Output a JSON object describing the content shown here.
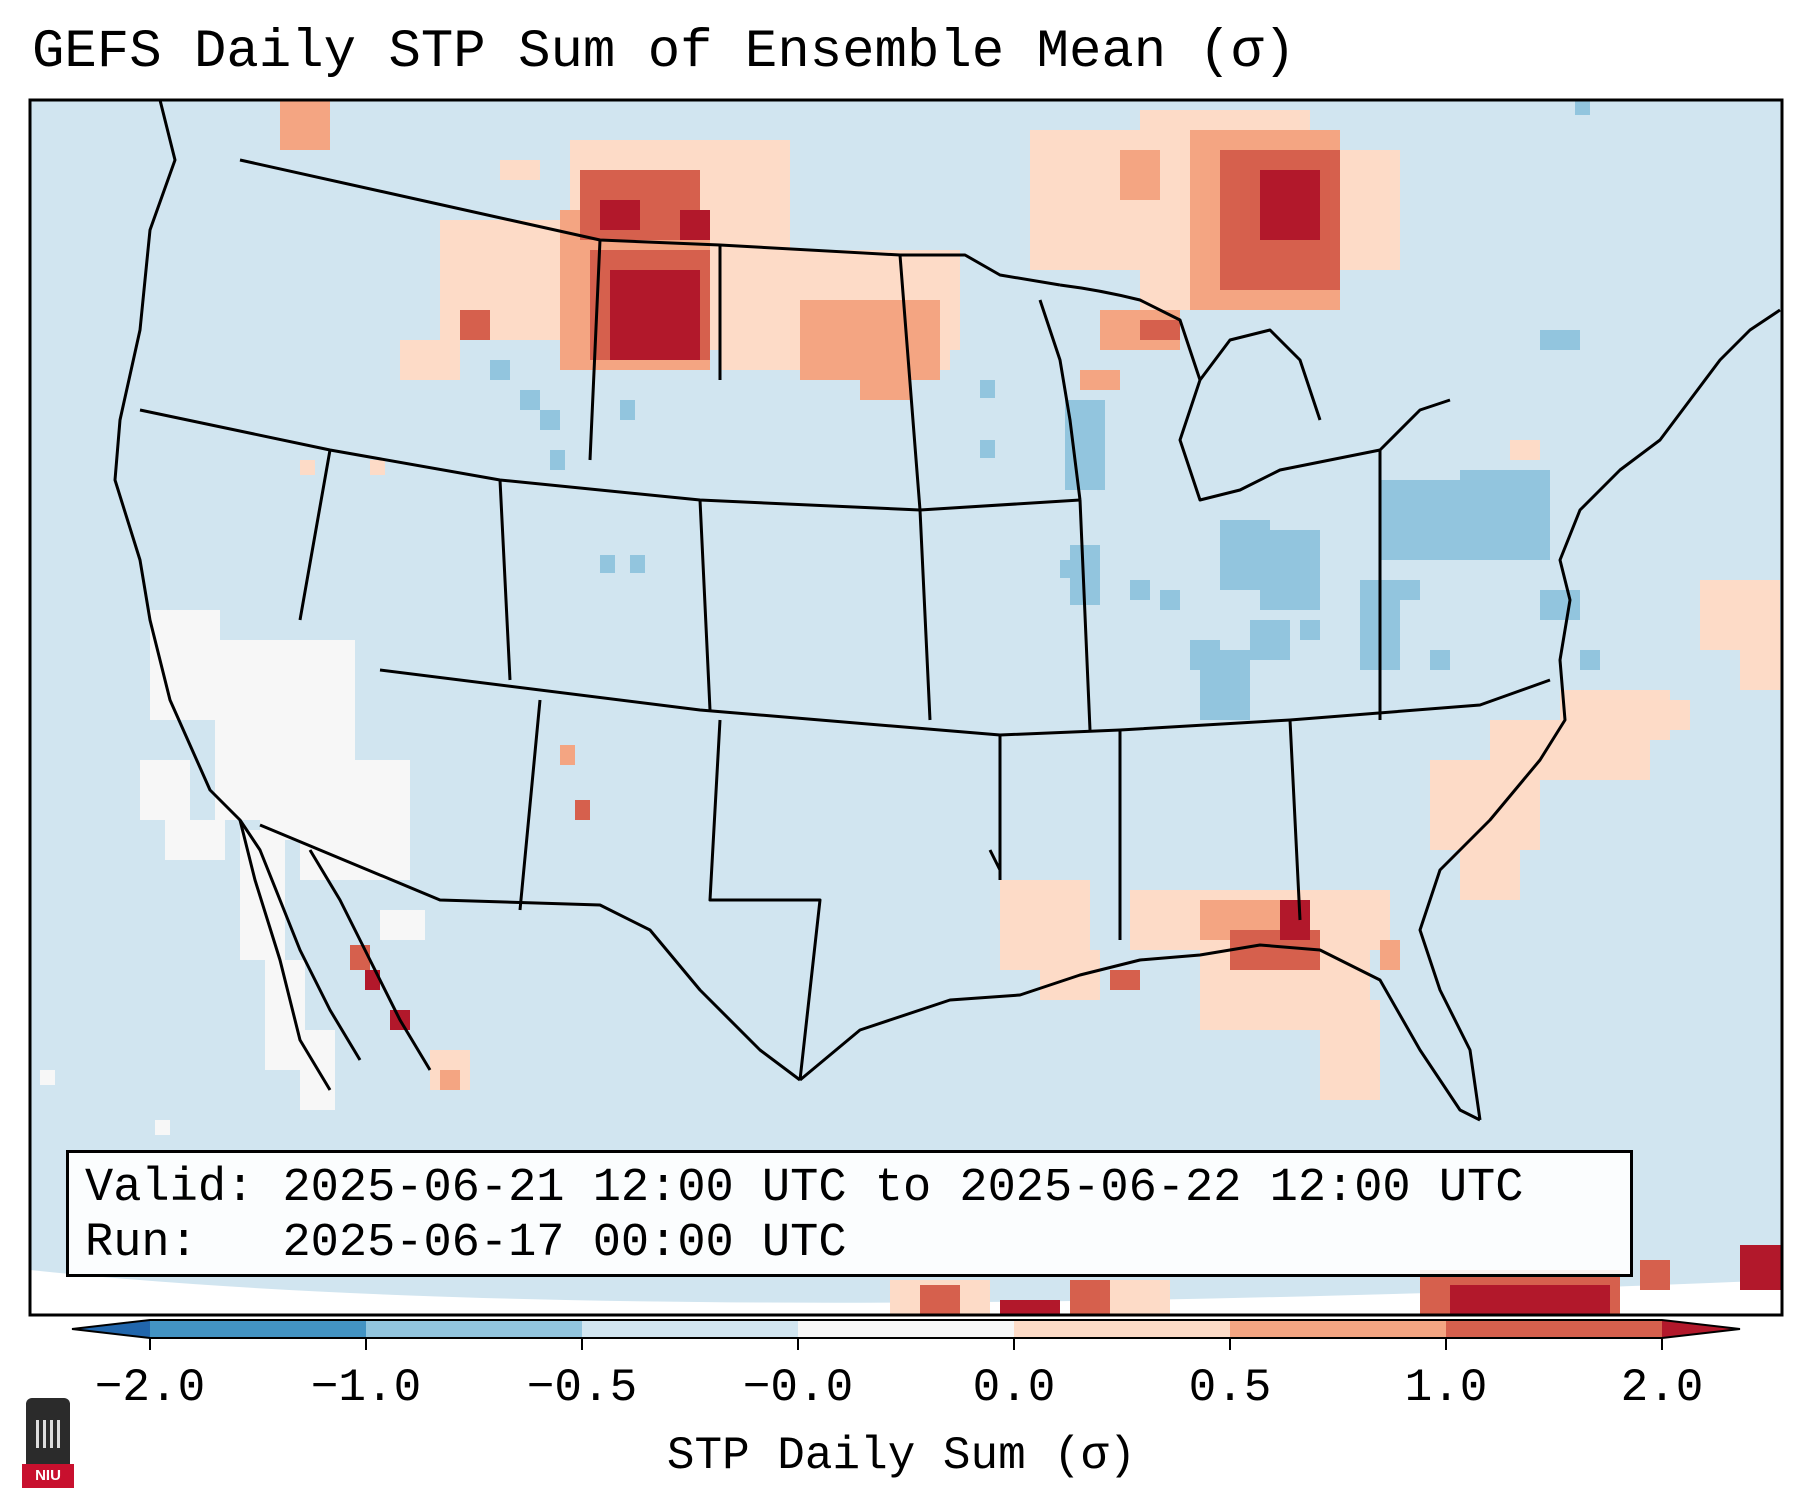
{
  "title": "GEFS Daily STP Sum of Ensemble Mean (σ)",
  "info": {
    "valid_label": "Valid:",
    "valid_value": "2025-06-21 12:00 UTC to 2025-06-22 12:00 UTC",
    "run_label": "Run:",
    "run_value": "2025-06-17 00:00 UTC"
  },
  "colorbar": {
    "label": "STP Daily Sum (σ)",
    "ticks": [
      "−2.0",
      "−1.0",
      "−0.5",
      "−0.0",
      "0.0",
      "0.5",
      "1.0",
      "2.0"
    ],
    "colors": [
      "#4393c3",
      "#92c5de",
      "#d1e5f0",
      "#f7f7f7",
      "#fddbc7",
      "#f4a582",
      "#d6604d",
      "#b2182b"
    ],
    "extend_low": "#2166ac",
    "extend_high": "#b2182b"
  },
  "map": {
    "background_color": "#d1e5f0",
    "features": [
      {
        "name": "anomaly-montana",
        "level": "high"
      },
      {
        "name": "anomaly-ontario",
        "level": "high"
      },
      {
        "name": "anomaly-dakotas",
        "level": "medium"
      },
      {
        "name": "anomaly-gulf-coast",
        "level": "medium"
      },
      {
        "name": "anomaly-atlantic",
        "level": "low"
      },
      {
        "name": "anomaly-ohio-valley",
        "level": "negative"
      },
      {
        "name": "anomaly-pennsylvania",
        "level": "negative"
      },
      {
        "name": "anomaly-california",
        "level": "neutral"
      },
      {
        "name": "anomaly-caribbean",
        "level": "high"
      }
    ]
  },
  "logo": {
    "text": "NIU"
  }
}
